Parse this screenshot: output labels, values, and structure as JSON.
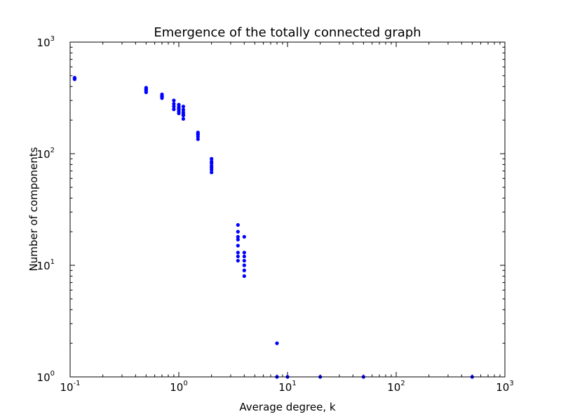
{
  "chart_data": {
    "type": "scatter",
    "title": "Emergence of the totally connected graph",
    "xlabel": "Average degree, k",
    "ylabel": "Number of components",
    "xscale": "log",
    "yscale": "log",
    "xlim": [
      0.1,
      1000
    ],
    "ylim": [
      1,
      1000
    ],
    "grid": false,
    "marker_color": "#0000ff",
    "x_ticks": [
      {
        "base": "10",
        "exp": "-1"
      },
      {
        "base": "10",
        "exp": "0"
      },
      {
        "base": "10",
        "exp": "1"
      },
      {
        "base": "10",
        "exp": "2"
      },
      {
        "base": "10",
        "exp": "3"
      }
    ],
    "y_ticks": [
      {
        "base": "10",
        "exp": "0"
      },
      {
        "base": "10",
        "exp": "1"
      },
      {
        "base": "10",
        "exp": "2"
      },
      {
        "base": "10",
        "exp": "3"
      }
    ],
    "x": [
      0.11,
      0.11,
      0.11,
      0.11,
      0.5,
      0.5,
      0.5,
      0.5,
      0.5,
      0.7,
      0.7,
      0.7,
      0.7,
      0.9,
      0.9,
      0.9,
      0.9,
      1.0,
      1.0,
      1.0,
      1.0,
      1.0,
      1.0,
      1.1,
      1.1,
      1.1,
      1.1,
      1.1,
      1.1,
      1.5,
      1.5,
      1.5,
      1.5,
      1.5,
      2.0,
      2.0,
      2.0,
      2.0,
      2.0,
      2.0,
      2.0,
      3.5,
      3.5,
      3.5,
      3.5,
      3.5,
      3.5,
      3.5,
      3.5,
      4.0,
      4.0,
      4.0,
      4.0,
      4.0,
      4.0,
      4.0,
      8.0,
      8.0,
      10.0,
      20.0,
      50.0,
      500.0
    ],
    "y": [
      480,
      470,
      465,
      475,
      390,
      375,
      365,
      355,
      380,
      340,
      325,
      315,
      330,
      300,
      280,
      265,
      250,
      275,
      262,
      250,
      240,
      230,
      255,
      265,
      248,
      235,
      220,
      205,
      225,
      155,
      148,
      142,
      135,
      150,
      90,
      82,
      78,
      75,
      72,
      68,
      85,
      23,
      20,
      18,
      17,
      15,
      13,
      12,
      11,
      18,
      13,
      12,
      11,
      10,
      9,
      8,
      2,
      1,
      1,
      1,
      1,
      1
    ]
  }
}
